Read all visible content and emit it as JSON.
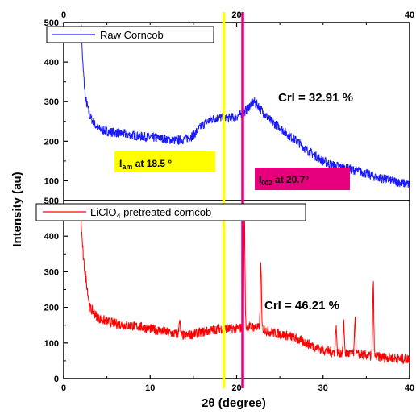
{
  "chart_data": [
    {
      "type": "line",
      "panel": "top",
      "xlim": [
        0,
        40
      ],
      "ylim": [
        50,
        500
      ],
      "x_ticks": [
        0,
        20,
        40
      ],
      "y_ticks": [
        100,
        200,
        300,
        400,
        500
      ],
      "x_tick_labels": [
        "0",
        "20",
        "40"
      ],
      "y_tick_labels": [
        "100",
        "200",
        "300",
        "400",
        "500"
      ],
      "series": [
        {
          "name": "Raw Corncob",
          "color": "#1a1aff",
          "points": [
            [
              2,
              500
            ],
            [
              2.2,
              400
            ],
            [
              2.5,
              310
            ],
            [
              3,
              265
            ],
            [
              3.5,
              245
            ],
            [
              4,
              232
            ],
            [
              5,
              225
            ],
            [
              6,
              222
            ],
            [
              7,
              218
            ],
            [
              8,
              215
            ],
            [
              9,
              212
            ],
            [
              10,
              210
            ],
            [
              11,
              208
            ],
            [
              12,
              205
            ],
            [
              13,
              202
            ],
            [
              14,
              205
            ],
            [
              15,
              215
            ],
            [
              16,
              240
            ],
            [
              17,
              255
            ],
            [
              18,
              260
            ],
            [
              19,
              258
            ],
            [
              20,
              262
            ],
            [
              21,
              275
            ],
            [
              21.5,
              290
            ],
            [
              22,
              300
            ],
            [
              22.5,
              290
            ],
            [
              23,
              275
            ],
            [
              24,
              250
            ],
            [
              25,
              235
            ],
            [
              26,
              215
            ],
            [
              27,
              200
            ],
            [
              28,
              180
            ],
            [
              29,
              165
            ],
            [
              30,
              150
            ],
            [
              31,
              140
            ],
            [
              32,
              135
            ],
            [
              33,
              130
            ],
            [
              34,
              125
            ],
            [
              35,
              118
            ],
            [
              36,
              110
            ],
            [
              37,
              105
            ],
            [
              38,
              100
            ],
            [
              39,
              95
            ],
            [
              40,
              90
            ]
          ],
          "noise": 12
        }
      ],
      "annotations": {
        "crl": "CrI = 32.91 %",
        "iam_main": "I",
        "iam_sub": "am",
        "iam_rest": " at 18.5 °",
        "i002_main": "I",
        "i002_sub": "002",
        "i002_rest": " at 20.7°"
      }
    },
    {
      "type": "line",
      "panel": "bottom",
      "xlim": [
        0,
        40
      ],
      "ylim": [
        0,
        500
      ],
      "x_ticks": [
        0,
        10,
        20,
        30,
        40
      ],
      "y_ticks": [
        0,
        100,
        200,
        300,
        400,
        500
      ],
      "x_tick_labels": [
        "0",
        "10",
        "20",
        "30",
        "40"
      ],
      "y_tick_labels": [
        "0",
        "100",
        "200",
        "300",
        "400",
        "500"
      ],
      "series": [
        {
          "name": "LiClO4 pretreated corncob",
          "color": "#ff0000",
          "points": [
            [
              2,
              440
            ],
            [
              2.3,
              330
            ],
            [
              2.7,
              260
            ],
            [
              3,
              200
            ],
            [
              4,
              170
            ],
            [
              5,
              160
            ],
            [
              6,
              155
            ],
            [
              7,
              150
            ],
            [
              8,
              148
            ],
            [
              9,
              145
            ],
            [
              10,
              140
            ],
            [
              11,
              135
            ],
            [
              12,
              130
            ],
            [
              13,
              125
            ],
            [
              14,
              120
            ],
            [
              15,
              125
            ],
            [
              16,
              130
            ],
            [
              17,
              135
            ],
            [
              18,
              140
            ],
            [
              19,
              140
            ],
            [
              20,
              140
            ],
            [
              21,
              145
            ],
            [
              22,
              145
            ],
            [
              23,
              140
            ],
            [
              24,
              130
            ],
            [
              25,
              125
            ],
            [
              26,
              120
            ],
            [
              27,
              110
            ],
            [
              28,
              100
            ],
            [
              29,
              90
            ],
            [
              30,
              80
            ],
            [
              31,
              75
            ],
            [
              32,
              72
            ],
            [
              33,
              70
            ],
            [
              34,
              68
            ],
            [
              35,
              65
            ],
            [
              36,
              62
            ],
            [
              37,
              60
            ],
            [
              38,
              58
            ],
            [
              39,
              55
            ],
            [
              40,
              55
            ]
          ],
          "peaks": [
            [
              20.9,
              450
            ],
            [
              22.8,
              330
            ],
            [
              35.8,
              265
            ],
            [
              13.4,
              170
            ],
            [
              31.5,
              150
            ],
            [
              32.4,
              155
            ],
            [
              33.7,
              175
            ]
          ],
          "noise": 14
        }
      ],
      "annotations": {
        "crl": "CrI = 46.21 %"
      }
    }
  ],
  "legend": {
    "top_label": "Raw Corncob",
    "bottom_label_main": "LiClO",
    "bottom_label_sub": "4",
    "bottom_label_rest": " pretreated corncob"
  },
  "axes": {
    "ylabel": "Intensity (au)",
    "xlabel": "2θ (degree)"
  },
  "vertical_lines": [
    {
      "x": 18.5,
      "color": "#ffff00"
    },
    {
      "x": 20.7,
      "color": "#e6007e"
    }
  ],
  "colors": {
    "iam_box": "#ffff00",
    "i002_box": "#e6007e"
  }
}
